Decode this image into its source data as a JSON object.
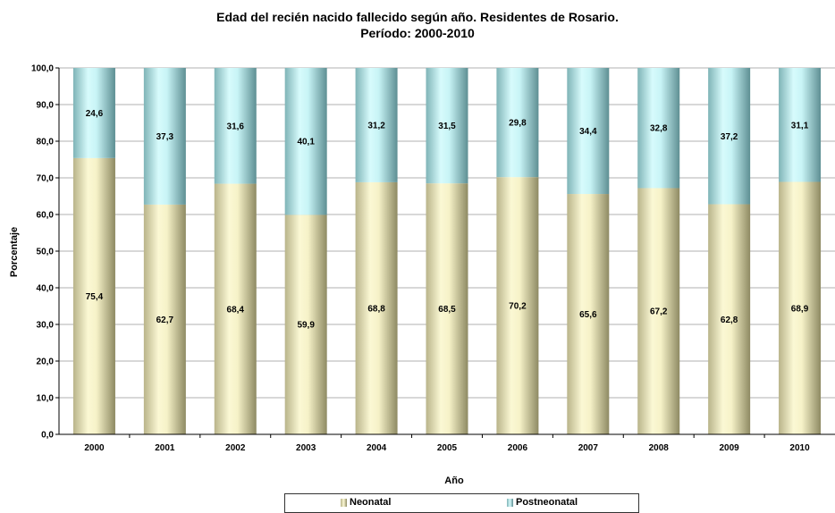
{
  "chart_data": {
    "type": "bar",
    "stacked": true,
    "title_line1": "Edad del recién nacido fallecido según año. Residentes de Rosario.",
    "title_line2": "Período: 2000-2010",
    "xlabel": "Año",
    "ylabel": "Porcentaje",
    "ylim": [
      0,
      100
    ],
    "yticks": [
      "0,0",
      "10,0",
      "20,0",
      "30,0",
      "40,0",
      "50,0",
      "60,0",
      "70,0",
      "80,0",
      "90,0",
      "100,0"
    ],
    "grid": true,
    "legend_position": "bottom",
    "categories": [
      "2000",
      "2001",
      "2002",
      "2003",
      "2004",
      "2005",
      "2006",
      "2007",
      "2008",
      "2009",
      "2010"
    ],
    "series": [
      {
        "name": "Neonatal",
        "color": "#f3efc4",
        "values": [
          75.4,
          62.7,
          68.4,
          59.9,
          68.8,
          68.5,
          70.2,
          65.6,
          67.2,
          62.8,
          68.9
        ],
        "labels": [
          "75,4",
          "62,7",
          "68,4",
          "59,9",
          "68,8",
          "68,5",
          "70,2",
          "65,6",
          "67,2",
          "62,8",
          "68,9"
        ]
      },
      {
        "name": "Postneonatal",
        "color": "#c2f0f0",
        "values": [
          24.6,
          37.3,
          31.6,
          40.1,
          31.2,
          31.5,
          29.8,
          34.4,
          32.8,
          37.2,
          31.1
        ],
        "labels": [
          "24,6",
          "37,3",
          "31,6",
          "40,1",
          "31,2",
          "31,5",
          "29,8",
          "34,4",
          "32,8",
          "37,2",
          "31,1"
        ]
      }
    ]
  }
}
